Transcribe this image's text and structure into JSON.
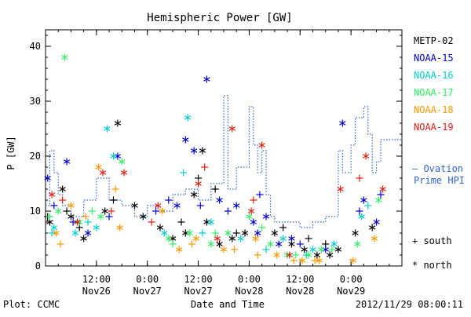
{
  "chart_data": {
    "type": "scatter",
    "title": "Hemispheric Power [GW]",
    "xlabel": "Date and Time",
    "ylabel": "P [GW]",
    "ylim": [
      0,
      43
    ],
    "yticks": [
      0,
      10,
      20,
      30,
      40
    ],
    "xlim": [
      "2012-11-26 00:00",
      "2012-11-29 12:00"
    ],
    "xticks": [
      {
        "t": "2012-11-26 12:00",
        "line1": "12:00",
        "line2": "Nov26"
      },
      {
        "t": "2012-11-27 00:00",
        "line1": "0:00",
        "line2": "Nov27"
      },
      {
        "t": "2012-11-27 12:00",
        "line1": "12:00",
        "line2": "Nov27"
      },
      {
        "t": "2012-11-28 00:00",
        "line1": "0:00",
        "line2": "Nov28"
      },
      {
        "t": "2012-11-28 12:00",
        "line1": "12:00",
        "line2": "Nov28"
      },
      {
        "t": "2012-11-29 00:00",
        "line1": "0:00",
        "line2": "Nov29"
      }
    ],
    "grid": false,
    "legend_position": "right",
    "series": [
      {
        "name": "METP-02",
        "color": "#000000",
        "points": [
          [
            "2012-11-26 01:00",
            8
          ],
          [
            "2012-11-26 04:00",
            14
          ],
          [
            "2012-11-26 06:00",
            9
          ],
          [
            "2012-11-26 09:00",
            5
          ],
          [
            "2012-11-26 14:00",
            10
          ],
          [
            "2012-11-26 17:00",
            26
          ],
          [
            "2012-11-26 21:00",
            11
          ],
          [
            "2012-11-26 23:00",
            9
          ],
          [
            "2012-11-27 03:00",
            7
          ],
          [
            "2012-11-27 06:00",
            5
          ],
          [
            "2012-11-27 09:00",
            6
          ],
          [
            "2012-11-27 11:00",
            13
          ],
          [
            "2012-11-27 13:00",
            21
          ],
          [
            "2012-11-27 14:00",
            8
          ],
          [
            "2012-11-27 17:00",
            4
          ],
          [
            "2012-11-27 20:00",
            5
          ],
          [
            "2012-11-27 23:00",
            6
          ],
          [
            "2012-11-28 06:00",
            6
          ],
          [
            "2012-11-28 10:00",
            4
          ],
          [
            "2012-11-28 13:00",
            3
          ],
          [
            "2012-11-28 16:00",
            2
          ],
          [
            "2012-11-28 19:00",
            2
          ],
          [
            "2012-11-28 21:00",
            3
          ],
          [
            "2012-11-29 01:00",
            6
          ],
          [
            "2012-11-29 05:00",
            7
          ]
        ],
        "points_south": [
          [
            "2012-11-26 00:30",
            9
          ],
          [
            "2012-11-26 05:00",
            10
          ],
          [
            "2012-11-26 08:00",
            7
          ],
          [
            "2012-11-26 16:00",
            12
          ],
          [
            "2012-11-27 08:00",
            8
          ],
          [
            "2012-11-27 12:00",
            16
          ],
          [
            "2012-11-27 16:00",
            14
          ],
          [
            "2012-11-27 21:00",
            6
          ],
          [
            "2012-11-28 08:00",
            7
          ],
          [
            "2012-11-28 14:00",
            5
          ],
          [
            "2012-11-28 18:00",
            4
          ]
        ]
      },
      {
        "name": "NOAA-15",
        "color": "#0000cc",
        "points": [
          [
            "2012-11-26 00:30",
            16
          ],
          [
            "2012-11-26 05:00",
            19
          ],
          [
            "2012-11-26 10:00",
            6
          ],
          [
            "2012-11-26 17:00",
            20
          ],
          [
            "2012-11-27 07:00",
            11
          ],
          [
            "2012-11-27 09:00",
            23
          ],
          [
            "2012-11-27 11:00",
            21
          ],
          [
            "2012-11-27 14:00",
            34
          ],
          [
            "2012-11-27 17:00",
            12
          ],
          [
            "2012-11-27 21:00",
            11
          ],
          [
            "2012-11-28 01:00",
            8
          ],
          [
            "2012-11-28 04:00",
            9
          ],
          [
            "2012-11-28 07:00",
            4
          ],
          [
            "2012-11-28 10:00",
            5
          ],
          [
            "2012-11-28 18:00",
            3
          ],
          [
            "2012-11-28 22:00",
            26
          ],
          [
            "2012-11-29 03:00",
            12
          ],
          [
            "2012-11-29 06:00",
            8
          ],
          [
            "2012-11-28 02:00",
            6
          ]
        ],
        "points_south": [
          [
            "2012-11-26 02:00",
            11
          ],
          [
            "2012-11-26 06:30",
            8
          ],
          [
            "2012-11-26 15:00",
            9
          ],
          [
            "2012-11-27 02:00",
            10
          ],
          [
            "2012-11-27 05:00",
            12
          ],
          [
            "2012-11-27 12:30",
            11
          ],
          [
            "2012-11-27 19:00",
            10
          ],
          [
            "2012-11-28 02:30",
            13
          ],
          [
            "2012-11-28 12:00",
            4
          ],
          [
            "2012-11-29 02:00",
            10
          ],
          [
            "2012-11-29 07:00",
            13
          ]
        ]
      },
      {
        "name": "NOAA-16",
        "color": "#00cccc",
        "points": [
          [
            "2012-11-26 02:00",
            7
          ],
          [
            "2012-11-26 07:00",
            6
          ],
          [
            "2012-11-26 12:00",
            7
          ],
          [
            "2012-11-26 14:30",
            25
          ],
          [
            "2012-11-26 16:00",
            20
          ],
          [
            "2012-11-27 04:00",
            6
          ],
          [
            "2012-11-27 09:30",
            27
          ],
          [
            "2012-11-27 15:00",
            8
          ],
          [
            "2012-11-27 22:00",
            5
          ],
          [
            "2012-11-28 08:00",
            5
          ],
          [
            "2012-11-28 15:00",
            3
          ],
          [
            "2012-11-28 20:00",
            4
          ],
          [
            "2012-11-29 02:30",
            9
          ]
        ],
        "points_south": [
          [
            "2012-11-26 01:30",
            6
          ],
          [
            "2012-11-26 10:00",
            8
          ],
          [
            "2012-11-27 08:30",
            17
          ],
          [
            "2012-11-27 13:00",
            6
          ],
          [
            "2012-11-28 04:00",
            3
          ],
          [
            "2012-11-28 13:30",
            2
          ],
          [
            "2012-11-29 04:00",
            11
          ]
        ]
      },
      {
        "name": "NOAA-17",
        "color": "#33ee66",
        "points": [
          [
            "2012-11-26 04:30",
            38
          ],
          [
            "2012-11-26 03:00",
            10
          ],
          [
            "2012-11-26 08:00",
            8
          ],
          [
            "2012-11-26 13:00",
            9
          ],
          [
            "2012-11-26 18:00",
            19
          ],
          [
            "2012-11-27 05:00",
            5
          ],
          [
            "2012-11-27 10:00",
            6
          ],
          [
            "2012-11-27 15:00",
            4
          ],
          [
            "2012-11-27 19:00",
            6
          ],
          [
            "2012-11-28 00:00",
            9
          ],
          [
            "2012-11-28 05:00",
            4
          ],
          [
            "2012-11-28 09:00",
            2
          ],
          [
            "2012-11-28 14:00",
            2
          ],
          [
            "2012-11-28 17:00",
            3
          ],
          [
            "2012-11-29 01:30",
            4
          ],
          [
            "2012-11-29 06:30",
            12
          ]
        ],
        "points_south": [
          [
            "2012-11-26 01:00",
            9
          ],
          [
            "2012-11-26 11:00",
            10
          ],
          [
            "2012-11-27 06:00",
            4
          ],
          [
            "2012-11-27 16:00",
            6
          ],
          [
            "2012-11-28 03:00",
            7
          ],
          [
            "2012-11-28 11:00",
            2
          ],
          [
            "2012-11-28 19:30",
            3
          ]
        ]
      },
      {
        "name": "NOAA-18",
        "color": "#ff9900",
        "points": [
          [
            "2012-11-26 02:30",
            6
          ],
          [
            "2012-11-26 06:00",
            11
          ],
          [
            "2012-11-26 12:30",
            18
          ],
          [
            "2012-11-26 17:30",
            7
          ],
          [
            "2012-11-27 03:30",
            10
          ],
          [
            "2012-11-27 07:30",
            3
          ],
          [
            "2012-11-27 11:30",
            5
          ],
          [
            "2012-11-27 18:00",
            3
          ],
          [
            "2012-11-28 01:30",
            5
          ],
          [
            "2012-11-28 06:30",
            2
          ],
          [
            "2012-11-28 12:30",
            1
          ],
          [
            "2012-11-28 16:30",
            1
          ],
          [
            "2012-11-29 00:30",
            1
          ],
          [
            "2012-11-29 05:30",
            5
          ]
        ],
        "points_south": [
          [
            "2012-11-26 03:30",
            4
          ],
          [
            "2012-11-26 09:30",
            9
          ],
          [
            "2012-11-26 16:30",
            14
          ],
          [
            "2012-11-27 10:30",
            4
          ],
          [
            "2012-11-27 20:30",
            3
          ],
          [
            "2012-11-28 02:00",
            2
          ],
          [
            "2012-11-28 10:30",
            1
          ],
          [
            "2012-11-28 15:30",
            1
          ]
        ]
      },
      {
        "name": "NOAA-19",
        "color": "#dd2211",
        "points": [
          [
            "2012-11-26 01:30",
            13
          ],
          [
            "2012-11-26 07:30",
            8
          ],
          [
            "2012-11-26 13:30",
            17
          ],
          [
            "2012-11-26 18:30",
            17
          ],
          [
            "2012-11-27 02:30",
            11
          ],
          [
            "2012-11-27 12:00",
            15
          ],
          [
            "2012-11-27 16:30",
            5
          ],
          [
            "2012-11-27 20:00",
            25
          ],
          [
            "2012-11-28 00:30",
            10
          ],
          [
            "2012-11-28 03:00",
            22
          ],
          [
            "2012-11-28 09:30",
            2
          ],
          [
            "2012-11-28 21:30",
            14
          ],
          [
            "2012-11-29 03:30",
            20
          ],
          [
            "2012-11-29 07:30",
            14
          ]
        ],
        "points_south": [
          [
            "2012-11-26 04:00",
            12
          ],
          [
            "2012-11-26 15:30",
            10
          ],
          [
            "2012-11-27 01:00",
            8
          ],
          [
            "2012-11-27 13:30",
            18
          ],
          [
            "2012-11-28 01:00",
            12
          ],
          [
            "2012-11-29 02:00",
            16
          ]
        ]
      }
    ],
    "ovation": {
      "name": "Ovation Prime HPI",
      "color": "#3366cc",
      "steps": [
        [
          "2012-11-26 00:00",
          11
        ],
        [
          "2012-11-26 01:00",
          21
        ],
        [
          "2012-11-26 02:00",
          17
        ],
        [
          "2012-11-26 03:00",
          13
        ],
        [
          "2012-11-26 04:00",
          11
        ],
        [
          "2012-11-26 06:00",
          9
        ],
        [
          "2012-11-26 09:00",
          12
        ],
        [
          "2012-11-26 12:00",
          16
        ],
        [
          "2012-11-26 15:00",
          12
        ],
        [
          "2012-11-26 18:00",
          11
        ],
        [
          "2012-11-26 21:00",
          9
        ],
        [
          "2012-11-27 00:00",
          11
        ],
        [
          "2012-11-27 03:00",
          10
        ],
        [
          "2012-11-27 06:00",
          13
        ],
        [
          "2012-11-27 09:00",
          14
        ],
        [
          "2012-11-27 12:00",
          12
        ],
        [
          "2012-11-27 15:00",
          15
        ],
        [
          "2012-11-27 18:00",
          31
        ],
        [
          "2012-11-27 19:00",
          14
        ],
        [
          "2012-11-27 21:00",
          18
        ],
        [
          "2012-11-28 00:00",
          29
        ],
        [
          "2012-11-28 01:00",
          22
        ],
        [
          "2012-11-28 02:00",
          17
        ],
        [
          "2012-11-28 03:00",
          21
        ],
        [
          "2012-11-28 04:00",
          13
        ],
        [
          "2012-11-28 05:00",
          9
        ],
        [
          "2012-11-28 06:00",
          8
        ],
        [
          "2012-11-28 09:00",
          8
        ],
        [
          "2012-11-28 12:00",
          7
        ],
        [
          "2012-11-28 15:00",
          8
        ],
        [
          "2012-11-28 18:00",
          9
        ],
        [
          "2012-11-28 21:00",
          21
        ],
        [
          "2012-11-28 22:00",
          17
        ],
        [
          "2012-11-29 00:00",
          22
        ],
        [
          "2012-11-29 01:00",
          27
        ],
        [
          "2012-11-29 03:00",
          29
        ],
        [
          "2012-11-29 04:00",
          24
        ],
        [
          "2012-11-29 05:00",
          17
        ],
        [
          "2012-11-29 06:00",
          19
        ],
        [
          "2012-11-29 07:00",
          23
        ]
      ]
    }
  },
  "legend": {
    "items": [
      "METP-02",
      "NOAA-15",
      "NOAA-16",
      "NOAA-17",
      "NOAA-18",
      "NOAA-19"
    ],
    "ovation_line1": "— Ovation",
    "ovation_line2": "Prime HPI",
    "south_label": "+ south",
    "north_label": "* north"
  },
  "footer": {
    "plot_credit": "Plot: CCMC",
    "timestamp": "2012/11/29 08:00:11"
  }
}
